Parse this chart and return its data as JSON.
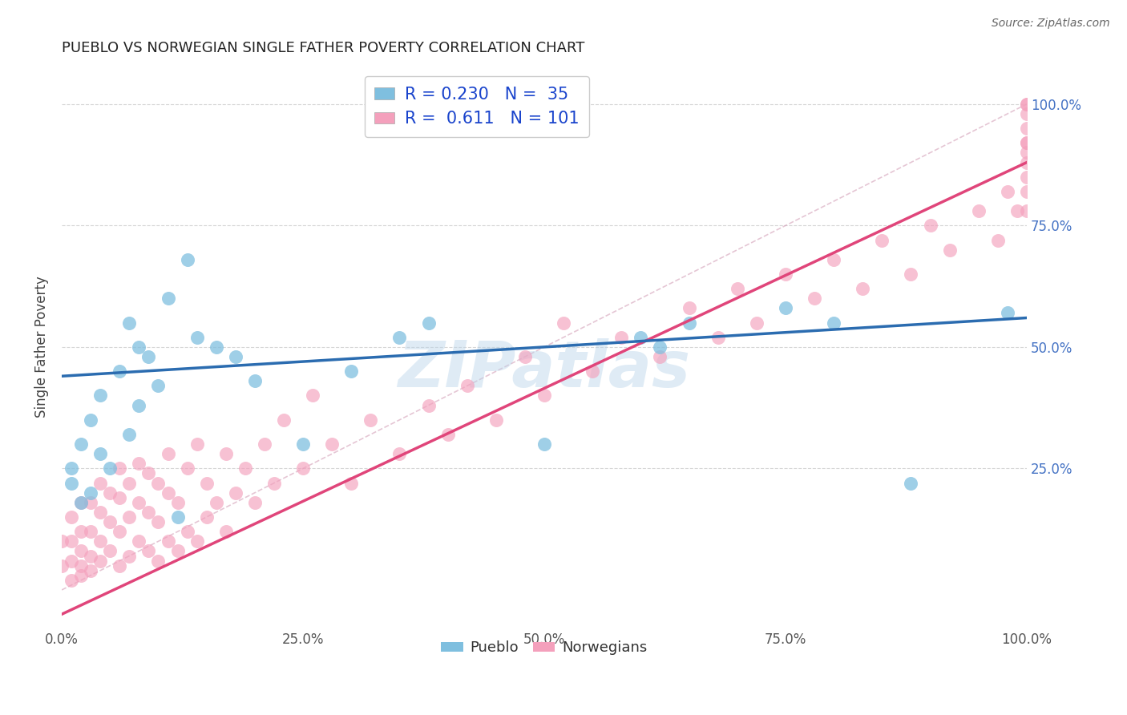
{
  "title": "PUEBLO VS NORWEGIAN SINGLE FATHER POVERTY CORRELATION CHART",
  "source": "Source: ZipAtlas.com",
  "ylabel": "Single Father Poverty",
  "xlim": [
    0.0,
    1.0
  ],
  "ylim": [
    -0.08,
    1.08
  ],
  "xtick_labels": [
    "0.0%",
    "25.0%",
    "50.0%",
    "75.0%",
    "100.0%"
  ],
  "xtick_positions": [
    0.0,
    0.25,
    0.5,
    0.75,
    1.0
  ],
  "ytick_labels": [
    "25.0%",
    "50.0%",
    "75.0%",
    "100.0%"
  ],
  "ytick_positions": [
    0.25,
    0.5,
    0.75,
    1.0
  ],
  "background_color": "#ffffff",
  "grid_color": "#cccccc",
  "pueblo_color": "#7fbfdf",
  "norwegian_color": "#f4a0bc",
  "pueblo_line_color": "#2b6cb0",
  "norwegian_line_color": "#e0457a",
  "pueblo_R": "0.230",
  "pueblo_N": "35",
  "norwegian_R": "0.611",
  "norwegian_N": "101",
  "pueblo_line_x": [
    0.0,
    1.0
  ],
  "pueblo_line_y": [
    0.44,
    0.56
  ],
  "norwegian_line_x": [
    0.0,
    1.0
  ],
  "norwegian_line_y": [
    -0.05,
    0.88
  ],
  "diag_line_x": [
    0.0,
    1.0
  ],
  "diag_line_y": [
    0.0,
    1.0
  ],
  "pueblo_scatter_x": [
    0.01,
    0.01,
    0.02,
    0.02,
    0.03,
    0.03,
    0.04,
    0.04,
    0.05,
    0.06,
    0.07,
    0.07,
    0.08,
    0.08,
    0.09,
    0.1,
    0.11,
    0.12,
    0.13,
    0.14,
    0.16,
    0.18,
    0.2,
    0.25,
    0.3,
    0.35,
    0.38,
    0.5,
    0.6,
    0.62,
    0.65,
    0.75,
    0.8,
    0.88,
    0.98
  ],
  "pueblo_scatter_y": [
    0.22,
    0.25,
    0.18,
    0.3,
    0.2,
    0.35,
    0.28,
    0.4,
    0.25,
    0.45,
    0.32,
    0.55,
    0.38,
    0.5,
    0.48,
    0.42,
    0.6,
    0.15,
    0.68,
    0.52,
    0.5,
    0.48,
    0.43,
    0.3,
    0.45,
    0.52,
    0.55,
    0.3,
    0.52,
    0.5,
    0.55,
    0.58,
    0.55,
    0.22,
    0.57
  ],
  "norwegian_scatter_x": [
    0.0,
    0.0,
    0.01,
    0.01,
    0.01,
    0.01,
    0.02,
    0.02,
    0.02,
    0.02,
    0.02,
    0.03,
    0.03,
    0.03,
    0.03,
    0.04,
    0.04,
    0.04,
    0.04,
    0.05,
    0.05,
    0.05,
    0.06,
    0.06,
    0.06,
    0.06,
    0.07,
    0.07,
    0.07,
    0.08,
    0.08,
    0.08,
    0.09,
    0.09,
    0.09,
    0.1,
    0.1,
    0.1,
    0.11,
    0.11,
    0.11,
    0.12,
    0.12,
    0.13,
    0.13,
    0.14,
    0.14,
    0.15,
    0.15,
    0.16,
    0.17,
    0.17,
    0.18,
    0.19,
    0.2,
    0.21,
    0.22,
    0.23,
    0.25,
    0.26,
    0.28,
    0.3,
    0.32,
    0.35,
    0.38,
    0.4,
    0.42,
    0.45,
    0.48,
    0.5,
    0.52,
    0.55,
    0.58,
    0.62,
    0.65,
    0.68,
    0.7,
    0.72,
    0.75,
    0.78,
    0.8,
    0.83,
    0.85,
    0.88,
    0.9,
    0.92,
    0.95,
    0.97,
    0.98,
    0.99,
    1.0,
    1.0,
    1.0,
    1.0,
    1.0,
    1.0,
    1.0,
    1.0,
    1.0,
    1.0,
    1.0
  ],
  "norwegian_scatter_y": [
    0.05,
    0.1,
    0.02,
    0.06,
    0.1,
    0.15,
    0.03,
    0.08,
    0.12,
    0.18,
    0.05,
    0.07,
    0.12,
    0.18,
    0.04,
    0.1,
    0.16,
    0.22,
    0.06,
    0.08,
    0.14,
    0.2,
    0.05,
    0.12,
    0.19,
    0.25,
    0.07,
    0.15,
    0.22,
    0.1,
    0.18,
    0.26,
    0.08,
    0.16,
    0.24,
    0.06,
    0.14,
    0.22,
    0.1,
    0.2,
    0.28,
    0.08,
    0.18,
    0.12,
    0.25,
    0.1,
    0.3,
    0.15,
    0.22,
    0.18,
    0.12,
    0.28,
    0.2,
    0.25,
    0.18,
    0.3,
    0.22,
    0.35,
    0.25,
    0.4,
    0.3,
    0.22,
    0.35,
    0.28,
    0.38,
    0.32,
    0.42,
    0.35,
    0.48,
    0.4,
    0.55,
    0.45,
    0.52,
    0.48,
    0.58,
    0.52,
    0.62,
    0.55,
    0.65,
    0.6,
    0.68,
    0.62,
    0.72,
    0.65,
    0.75,
    0.7,
    0.78,
    0.72,
    0.82,
    0.78,
    0.85,
    0.9,
    0.78,
    0.92,
    0.88,
    0.95,
    0.82,
    0.98,
    0.92,
    1.0,
    1.0
  ]
}
